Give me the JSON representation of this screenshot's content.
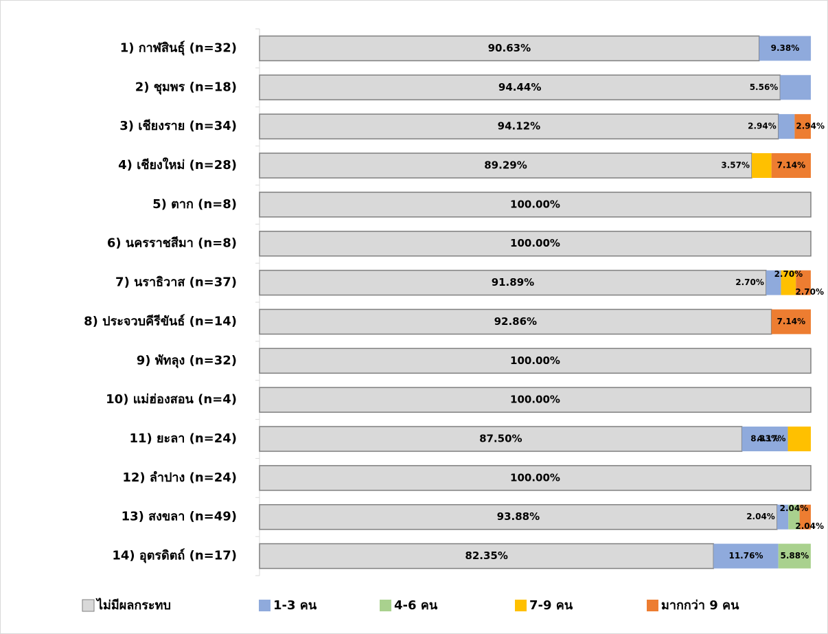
{
  "chart_data": {
    "type": "stacked_bar_horizontal",
    "categories": [
      "1) กาฬสินธุ์ (n=32)",
      "2) ชุมพร (n=18)",
      "3) เชียงราย (n=34)",
      "4) เชียงใหม่ (n=28)",
      "5) ตาก (n=8)",
      "6) นครราชสีมา (n=8)",
      "7) นราธิวาส (n=37)",
      "8) ประจวบคีรีขันธ์ (n=14)",
      "9) พัทลุง (n=32)",
      "10) แม่ฮ่องสอน (n=4)",
      "11) ยะลา (n=24)",
      "12) ลำปาง (n=24)",
      "13) สงขลา (n=49)",
      "14) อุตรดิตถ์ (n=17)"
    ],
    "series": [
      {
        "name": "ไม่มีผลกระทบ",
        "color": "#d9d9d9",
        "values": [
          90.63,
          94.44,
          94.12,
          89.29,
          100,
          100,
          91.89,
          92.86,
          100,
          100,
          87.5,
          100,
          93.88,
          82.35
        ],
        "value_labels": [
          "90.63%",
          "94.44%",
          "94.12%",
          "89.29%",
          "100.00%",
          "100.00%",
          "91.89%",
          "92.86%",
          "100.00%",
          "100.00%",
          "87.50%",
          "100.00%",
          "93.88%",
          "82.35%"
        ]
      },
      {
        "name": "1-3 คน",
        "color": "#8faadc",
        "values": [
          9.38,
          5.56,
          2.94,
          null,
          null,
          null,
          2.7,
          null,
          null,
          null,
          8.33,
          null,
          2.04,
          11.76
        ],
        "value_labels": [
          "9.38%",
          "5.56%",
          "2.94%",
          null,
          null,
          null,
          "2.70%",
          null,
          null,
          null,
          "8.33%",
          null,
          "2.04%",
          "11.76%"
        ]
      },
      {
        "name": "4-6 คน",
        "color": "#a9d18e",
        "values": [
          null,
          null,
          null,
          null,
          null,
          null,
          null,
          null,
          null,
          null,
          null,
          null,
          2.04,
          5.88
        ],
        "value_labels": [
          null,
          null,
          null,
          null,
          null,
          null,
          null,
          null,
          null,
          null,
          null,
          null,
          "2.04%",
          "5.88%"
        ]
      },
      {
        "name": "7-9 คน",
        "color": "#ffc000",
        "values": [
          null,
          null,
          null,
          3.57,
          null,
          null,
          2.7,
          null,
          null,
          null,
          4.17,
          null,
          null,
          null
        ],
        "value_labels": [
          null,
          null,
          null,
          "3.57%",
          null,
          null,
          "2.70%",
          null,
          null,
          null,
          "4.17%",
          null,
          null,
          null
        ]
      },
      {
        "name": "มากกว่า 9 คน",
        "color": "#ed7d31",
        "values": [
          null,
          null,
          2.94,
          7.14,
          null,
          null,
          2.7,
          7.14,
          null,
          null,
          null,
          null,
          2.04,
          null
        ],
        "value_labels": [
          null,
          null,
          "2.94%",
          "7.14%",
          null,
          null,
          "2.70%",
          "7.14%",
          null,
          null,
          null,
          null,
          "2.04%",
          null
        ]
      }
    ],
    "xlim": [
      0,
      100
    ]
  }
}
